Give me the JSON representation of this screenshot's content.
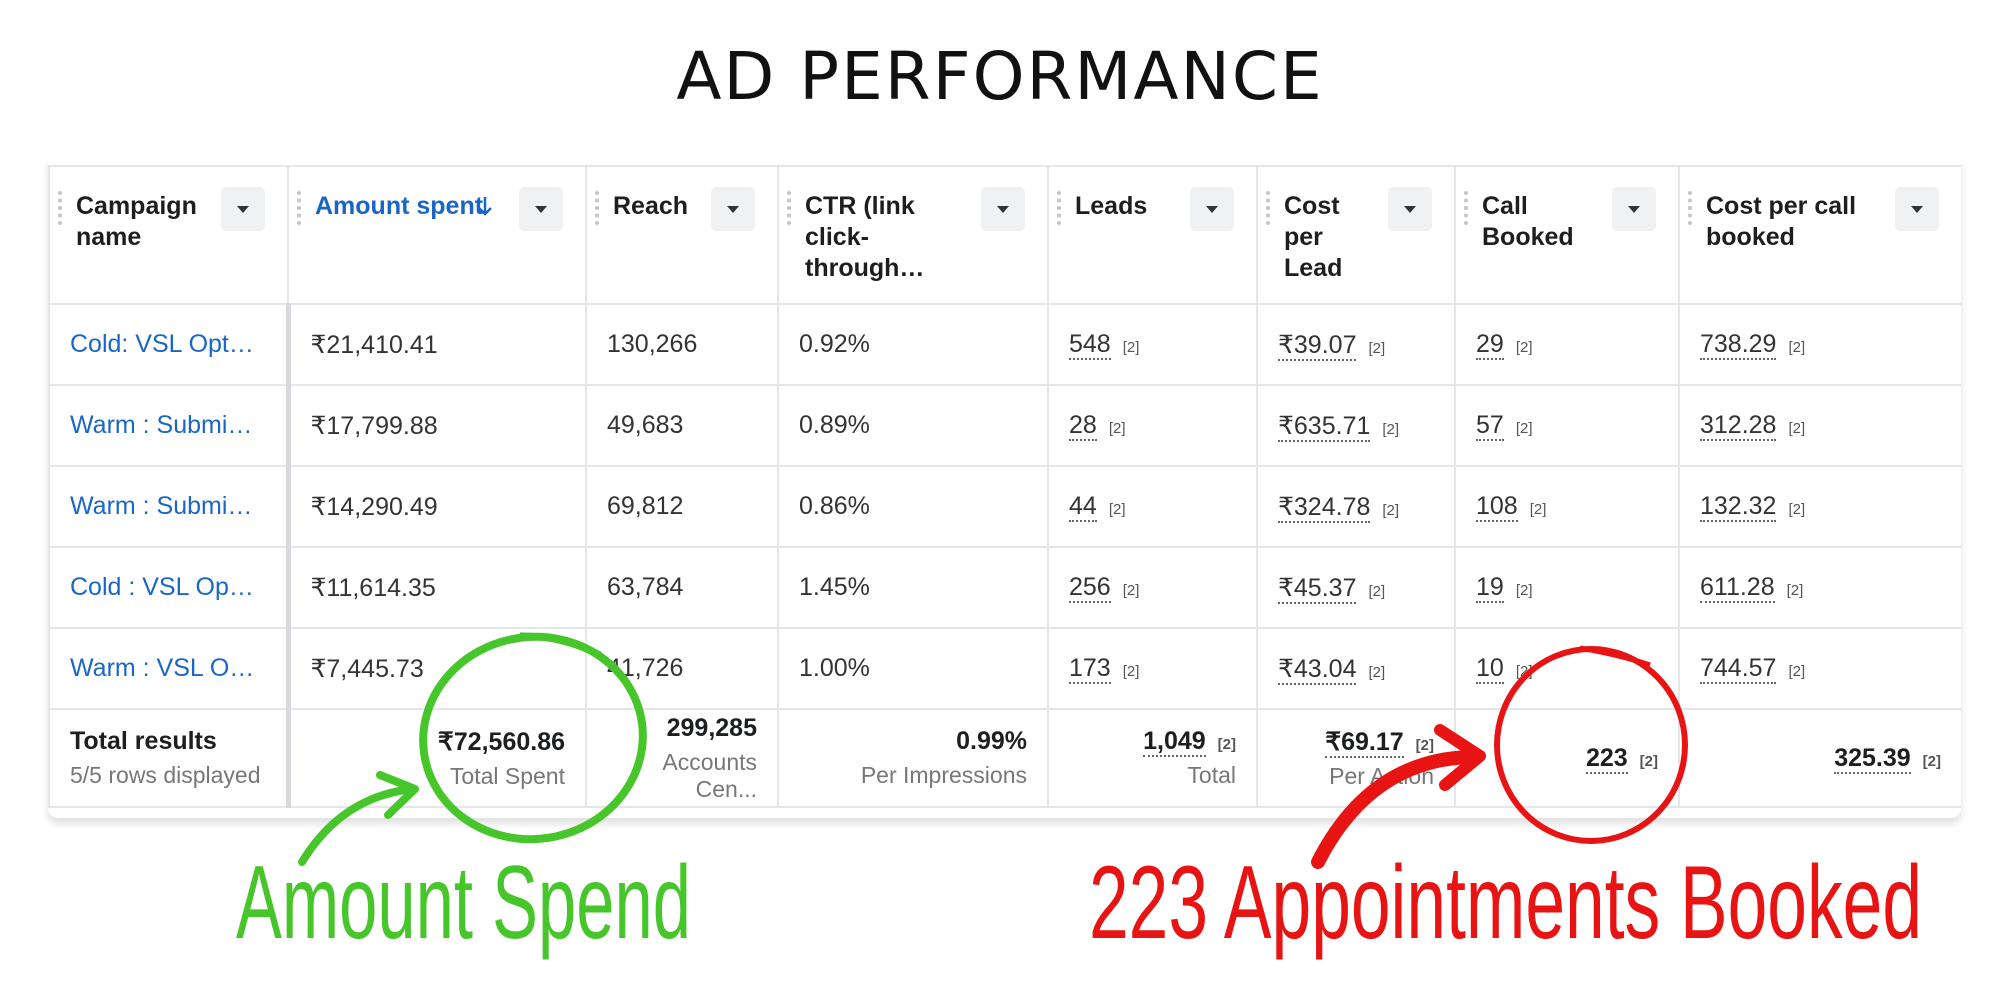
{
  "header": {
    "title": "AD PERFORMANCE"
  },
  "table": {
    "columns": [
      "Campaign name",
      "Amount spent",
      "Reach",
      "CTR (link click-through…",
      "Leads",
      "Cost per Lead",
      "Call Booked",
      "Cost per call booked"
    ],
    "rows": [
      [
        "Cold: VSL Opt…",
        "₹21,410.41",
        "130,266",
        "0.92%",
        {
          "text": "548",
          "note": "[2]"
        },
        {
          "text": "₹39.07",
          "note": "[2]"
        },
        {
          "text": "29",
          "note": "[2]"
        },
        {
          "text": "738.29",
          "note": "[2]"
        }
      ],
      [
        "Warm : Submi…",
        "₹17,799.88",
        "49,683",
        "0.89%",
        {
          "text": "28",
          "note": "[2]"
        },
        {
          "text": "₹635.71",
          "note": "[2]"
        },
        {
          "text": "57",
          "note": "[2]"
        },
        {
          "text": "312.28",
          "note": "[2]"
        }
      ],
      [
        "Warm : Submi…",
        "₹14,290.49",
        "69,812",
        "0.86%",
        {
          "text": "44",
          "note": "[2]"
        },
        {
          "text": "₹324.78",
          "note": "[2]"
        },
        {
          "text": "108",
          "note": "[2]"
        },
        {
          "text": "132.32",
          "note": "[2]"
        }
      ],
      [
        "Cold : VSL Op…",
        "₹11,614.35",
        "63,784",
        "1.45%",
        {
          "text": "256",
          "note": "[2]"
        },
        {
          "text": "₹45.37",
          "note": "[2]"
        },
        {
          "text": "19",
          "note": "[2]"
        },
        {
          "text": "611.28",
          "note": "[2]"
        }
      ],
      [
        "Warm : VSL O…",
        "₹7,445.73",
        "41,726",
        "1.00%",
        {
          "text": "173",
          "note": "[2]"
        },
        {
          "text": "₹43.04",
          "note": "[2]"
        },
        {
          "text": "10",
          "note": "[2]"
        },
        {
          "text": "744.57",
          "note": "[2]"
        }
      ]
    ],
    "totals": {
      "label": "Total results",
      "sublabel": "5/5 rows displayed",
      "cells": [
        {
          "text": "₹72,560.86",
          "caption": "Total Spent"
        },
        {
          "text": "299,285",
          "caption": "Accounts Cen..."
        },
        {
          "text": "0.99%",
          "caption": "Per Impressions"
        },
        {
          "text": "1,049",
          "note": "[2]",
          "caption": "Total"
        },
        {
          "text": "₹69.17",
          "note": "[2]",
          "caption": "Per Action"
        },
        {
          "text": "223",
          "note": "[2]"
        },
        {
          "text": "325.39",
          "note": "[2]"
        }
      ]
    }
  },
  "annotations": [
    {
      "text": "Amount Spend",
      "color": "#46c62a"
    },
    {
      "text": "223 Appointments Booked",
      "color": "#e81414"
    }
  ]
}
